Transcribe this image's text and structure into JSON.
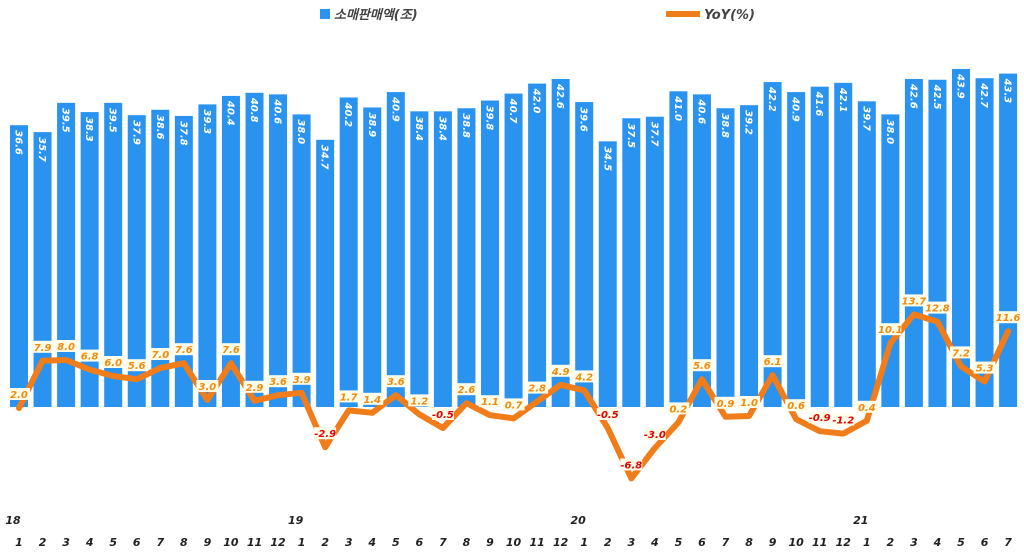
{
  "chart_data": {
    "type": "bar+line",
    "legend_position": "top",
    "grid": false,
    "colors": {
      "bar": "#2A93F0",
      "line": "#F07C1A",
      "positive_label": "#F08A10",
      "negative_label": "#E00000",
      "label_bg": "#FFFDE8"
    },
    "year_labels": [
      {
        "index": 0,
        "label": "18"
      },
      {
        "index": 12,
        "label": "19"
      },
      {
        "index": 24,
        "label": "20"
      },
      {
        "index": 36,
        "label": "21"
      }
    ],
    "categories": [
      "1",
      "2",
      "3",
      "4",
      "5",
      "6",
      "7",
      "8",
      "9",
      "10",
      "11",
      "12",
      "1",
      "2",
      "3",
      "4",
      "5",
      "6",
      "7",
      "8",
      "9",
      "10",
      "11",
      "12",
      "1",
      "2",
      "3",
      "4",
      "5",
      "6",
      "7",
      "8",
      "9",
      "10",
      "11",
      "12",
      "1",
      "2",
      "3",
      "4",
      "5",
      "6",
      "7"
    ],
    "series": [
      {
        "name": "소매판매액(조)",
        "type": "bar",
        "values": [
          36.6,
          35.7,
          39.5,
          38.3,
          39.5,
          37.9,
          38.6,
          37.8,
          39.3,
          40.4,
          40.8,
          40.6,
          38.0,
          34.7,
          40.2,
          38.9,
          40.9,
          38.4,
          38.4,
          38.8,
          39.8,
          40.7,
          42.0,
          42.6,
          39.6,
          34.5,
          37.5,
          37.7,
          41.0,
          40.6,
          38.8,
          39.2,
          42.2,
          40.9,
          41.6,
          42.1,
          39.7,
          38.0,
          42.6,
          42.5,
          43.9,
          42.7,
          43.3
        ]
      },
      {
        "name": "YoY(%)",
        "type": "line",
        "values": [
          2.0,
          7.9,
          8.0,
          6.8,
          6.0,
          5.6,
          7.0,
          7.6,
          3.0,
          7.6,
          2.9,
          3.6,
          3.9,
          -2.9,
          1.7,
          1.4,
          3.6,
          1.2,
          -0.5,
          2.6,
          1.1,
          0.7,
          2.8,
          4.9,
          4.2,
          -0.5,
          -6.8,
          -3.0,
          0.2,
          5.6,
          0.9,
          1.0,
          6.1,
          0.6,
          -0.9,
          -1.2,
          0.4,
          10.1,
          13.7,
          12.8,
          7.2,
          5.3,
          11.6
        ]
      }
    ]
  }
}
